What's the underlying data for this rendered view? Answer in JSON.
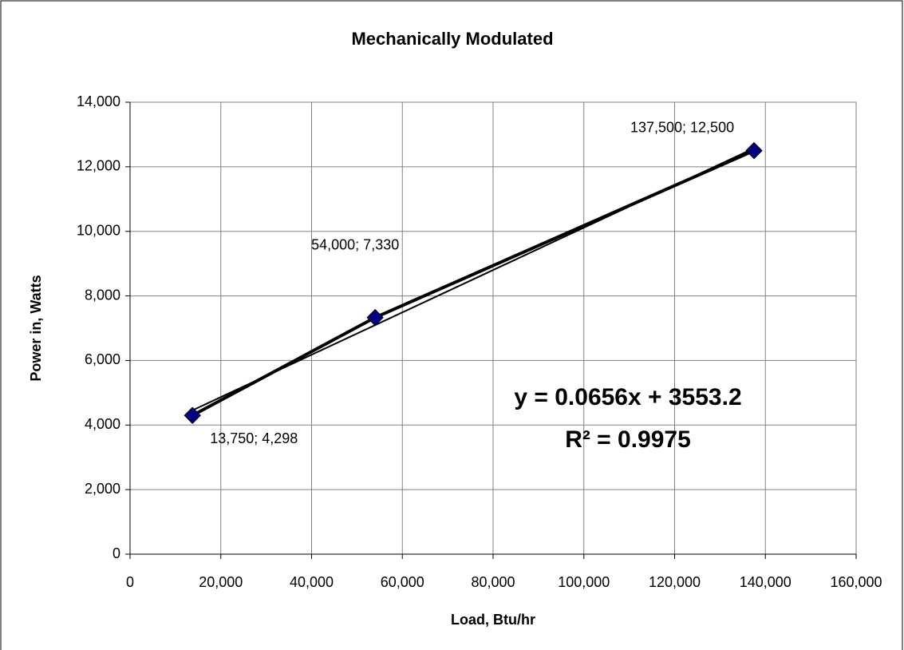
{
  "chart_data": {
    "type": "scatter",
    "title": "Mechanically Modulated",
    "x_label": "Load, Btu/hr",
    "y_label": "Power in, Watts",
    "series": [
      {
        "name": "Mechanically Modulated",
        "color": "#000080",
        "line_color": "#000000",
        "x": [
          13750,
          54000,
          137500
        ],
        "values": [
          4298,
          7330,
          12500
        ],
        "value_labels": [
          "13,750; 4,298",
          "54,000; 7,330",
          "137,500; 12,500"
        ]
      }
    ],
    "trendline": {
      "slope": 0.0656,
      "intercept": 3553.2,
      "label": "y = 0.0656x + 3553.2",
      "r2_label": "R² = 0.9975"
    },
    "xlim": [
      0,
      160000
    ],
    "xticks": [
      0,
      {
        "value": 20000,
        "label": "20,000"
      },
      {
        "value": 40000,
        "label": "40,000"
      },
      {
        "value": 60000,
        "label": "60,000"
      },
      {
        "value": 80000,
        "label": "80,000"
      },
      {
        "value": 100000,
        "label": "100,000"
      },
      {
        "value": 120000,
        "label": "120,000"
      },
      {
        "value": 140000,
        "label": "140,000"
      },
      {
        "value": 160000,
        "label": "160,000"
      }
    ],
    "ylim": [
      0,
      14000
    ],
    "yticks": [
      0,
      {
        "value": 2000,
        "label": "2,000"
      },
      {
        "value": 4000,
        "label": "4,000"
      },
      {
        "value": 6000,
        "label": "6,000"
      },
      {
        "value": 8000,
        "label": "8,000"
      },
      {
        "value": 10000,
        "label": "10,000"
      },
      {
        "value": 12000,
        "label": "12,000"
      },
      {
        "value": 14000,
        "label": "14,000"
      }
    ],
    "grid": true
  }
}
